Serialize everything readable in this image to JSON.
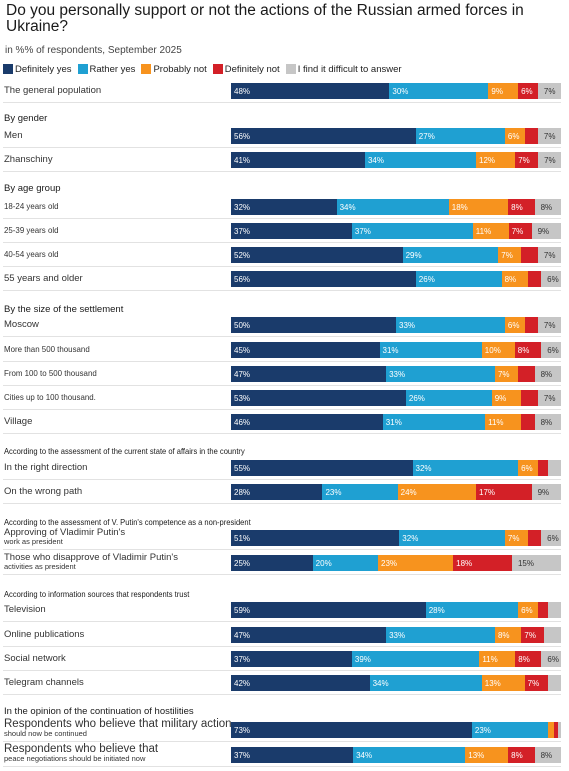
{
  "chart_data": {
    "type": "bar",
    "title": "Do you personally support or not the actions of the Russian armed forces in Ukraine?",
    "subtitle": "in %% of respondents, September 2025",
    "series_names": [
      "Definitely yes",
      "Rather yes",
      "Probably not",
      "Definitely not",
      "I find it difficult to answer"
    ],
    "colors": [
      "#1a3b6b",
      "#1fa0d2",
      "#f7931e",
      "#d32027",
      "#c6c6c6"
    ],
    "rows": [
      {
        "label": "The general population",
        "values": [
          48,
          30,
          9,
          6,
          7
        ]
      },
      {
        "group": "By gender"
      },
      {
        "label": "Men",
        "values": [
          56,
          27,
          6,
          4,
          7
        ]
      },
      {
        "label": "Zhanschiny",
        "values": [
          41,
          34,
          12,
          7,
          7
        ]
      },
      {
        "group": "By age group"
      },
      {
        "label": "18-24 years old",
        "values": [
          32,
          34,
          18,
          8,
          8
        ]
      },
      {
        "label": "25-39 years old",
        "values": [
          37,
          37,
          11,
          7,
          9
        ]
      },
      {
        "label": "40-54 years old",
        "values": [
          52,
          29,
          7,
          5,
          7
        ]
      },
      {
        "label": "55 years and older",
        "values": [
          56,
          26,
          8,
          4,
          6
        ]
      },
      {
        "group": "By the size of the settlement"
      },
      {
        "label": "Moscow",
        "values": [
          50,
          33,
          6,
          4,
          7
        ]
      },
      {
        "label": "More than 500 thousand",
        "values": [
          45,
          31,
          10,
          8,
          6
        ]
      },
      {
        "label": "From 100 to 500 thousand",
        "values": [
          47,
          33,
          7,
          5,
          8
        ]
      },
      {
        "label": "Cities up to 100 thousand.",
        "values": [
          53,
          26,
          9,
          5,
          7
        ]
      },
      {
        "label": "Village",
        "values": [
          46,
          31,
          11,
          4,
          8
        ]
      },
      {
        "group": "According to the assessment of the current state of affairs in the country"
      },
      {
        "label": "In the right direction",
        "values": [
          55,
          32,
          6,
          3,
          4
        ]
      },
      {
        "label": "On the wrong path",
        "values": [
          28,
          23,
          24,
          17,
          9
        ]
      },
      {
        "group": "According to the assessment of V. Putin's competence as a non-president"
      },
      {
        "label": "Approving of Vladimir Putin's",
        "label2": "work as president",
        "values": [
          51,
          32,
          7,
          4,
          6
        ]
      },
      {
        "label": "Those who disapprove of Vladimir Putin's",
        "label2": "activities as president",
        "values": [
          25,
          20,
          23,
          18,
          15
        ]
      },
      {
        "group": "According to information sources that respondents trust"
      },
      {
        "label": "Television",
        "values": [
          59,
          28,
          6,
          3,
          4
        ]
      },
      {
        "label": "Online publications",
        "values": [
          47,
          33,
          8,
          7,
          5
        ]
      },
      {
        "label": "Social network",
        "values": [
          37,
          39,
          11,
          8,
          6
        ]
      },
      {
        "label": "Telegram channels",
        "values": [
          42,
          34,
          13,
          7,
          4
        ]
      },
      {
        "group": "In the opinion of the continuation of hostilities"
      },
      {
        "label": "Respondents who believe that military action",
        "label2": "should now be continued",
        "values": [
          73,
          23,
          2,
          1,
          1
        ],
        "big": true
      },
      {
        "label": "Respondents who believe that",
        "label2": "peace negotiations should be initiated now",
        "values": [
          37,
          34,
          13,
          8,
          8
        ],
        "big": true
      }
    ],
    "label_threshold": 6,
    "xlim": [
      0,
      100
    ]
  }
}
